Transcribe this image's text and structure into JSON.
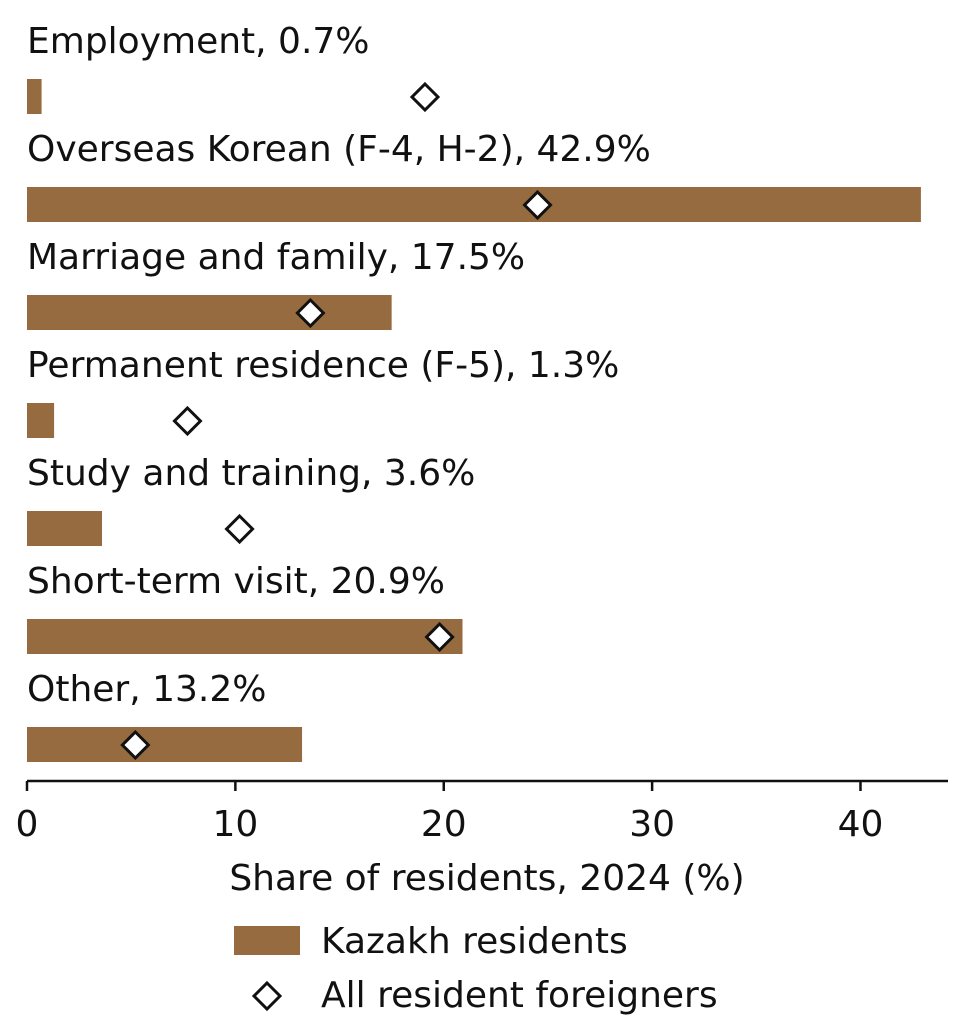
{
  "chart_data": {
    "type": "bar",
    "orientation": "horizontal",
    "categories": [
      "Employment",
      "Overseas Korean (F-4, H-2)",
      "Marriage and family",
      "Permanent residence (F-5)",
      "Study and training",
      "Short-term visit",
      "Other"
    ],
    "category_labels": [
      "Employment, 0.7%",
      "Overseas Korean (F-4, H-2), 42.9%",
      "Marriage and family, 17.5%",
      "Permanent residence (F-5), 1.3%",
      "Study and training, 3.6%",
      "Short-term visit, 20.9%",
      "Other, 13.2%"
    ],
    "series": [
      {
        "name": "Kazakh residents",
        "mark": "bar",
        "color": "#976b40",
        "values": [
          0.7,
          42.9,
          17.5,
          1.3,
          3.6,
          20.9,
          13.2
        ]
      },
      {
        "name": "All resident foreigners",
        "mark": "diamond",
        "color": "#ffffff",
        "values": [
          19.1,
          24.5,
          13.6,
          7.7,
          10.2,
          19.8,
          5.2
        ]
      }
    ],
    "xlabel": "Share of residents, 2024 (%)",
    "xlim": [
      0,
      44.2
    ],
    "xticks": [
      0,
      10,
      20,
      30,
      40
    ],
    "xtick_labels": [
      "0",
      "10",
      "20",
      "30",
      "40"
    ],
    "grid": false,
    "legend_position": "bottom-center"
  }
}
